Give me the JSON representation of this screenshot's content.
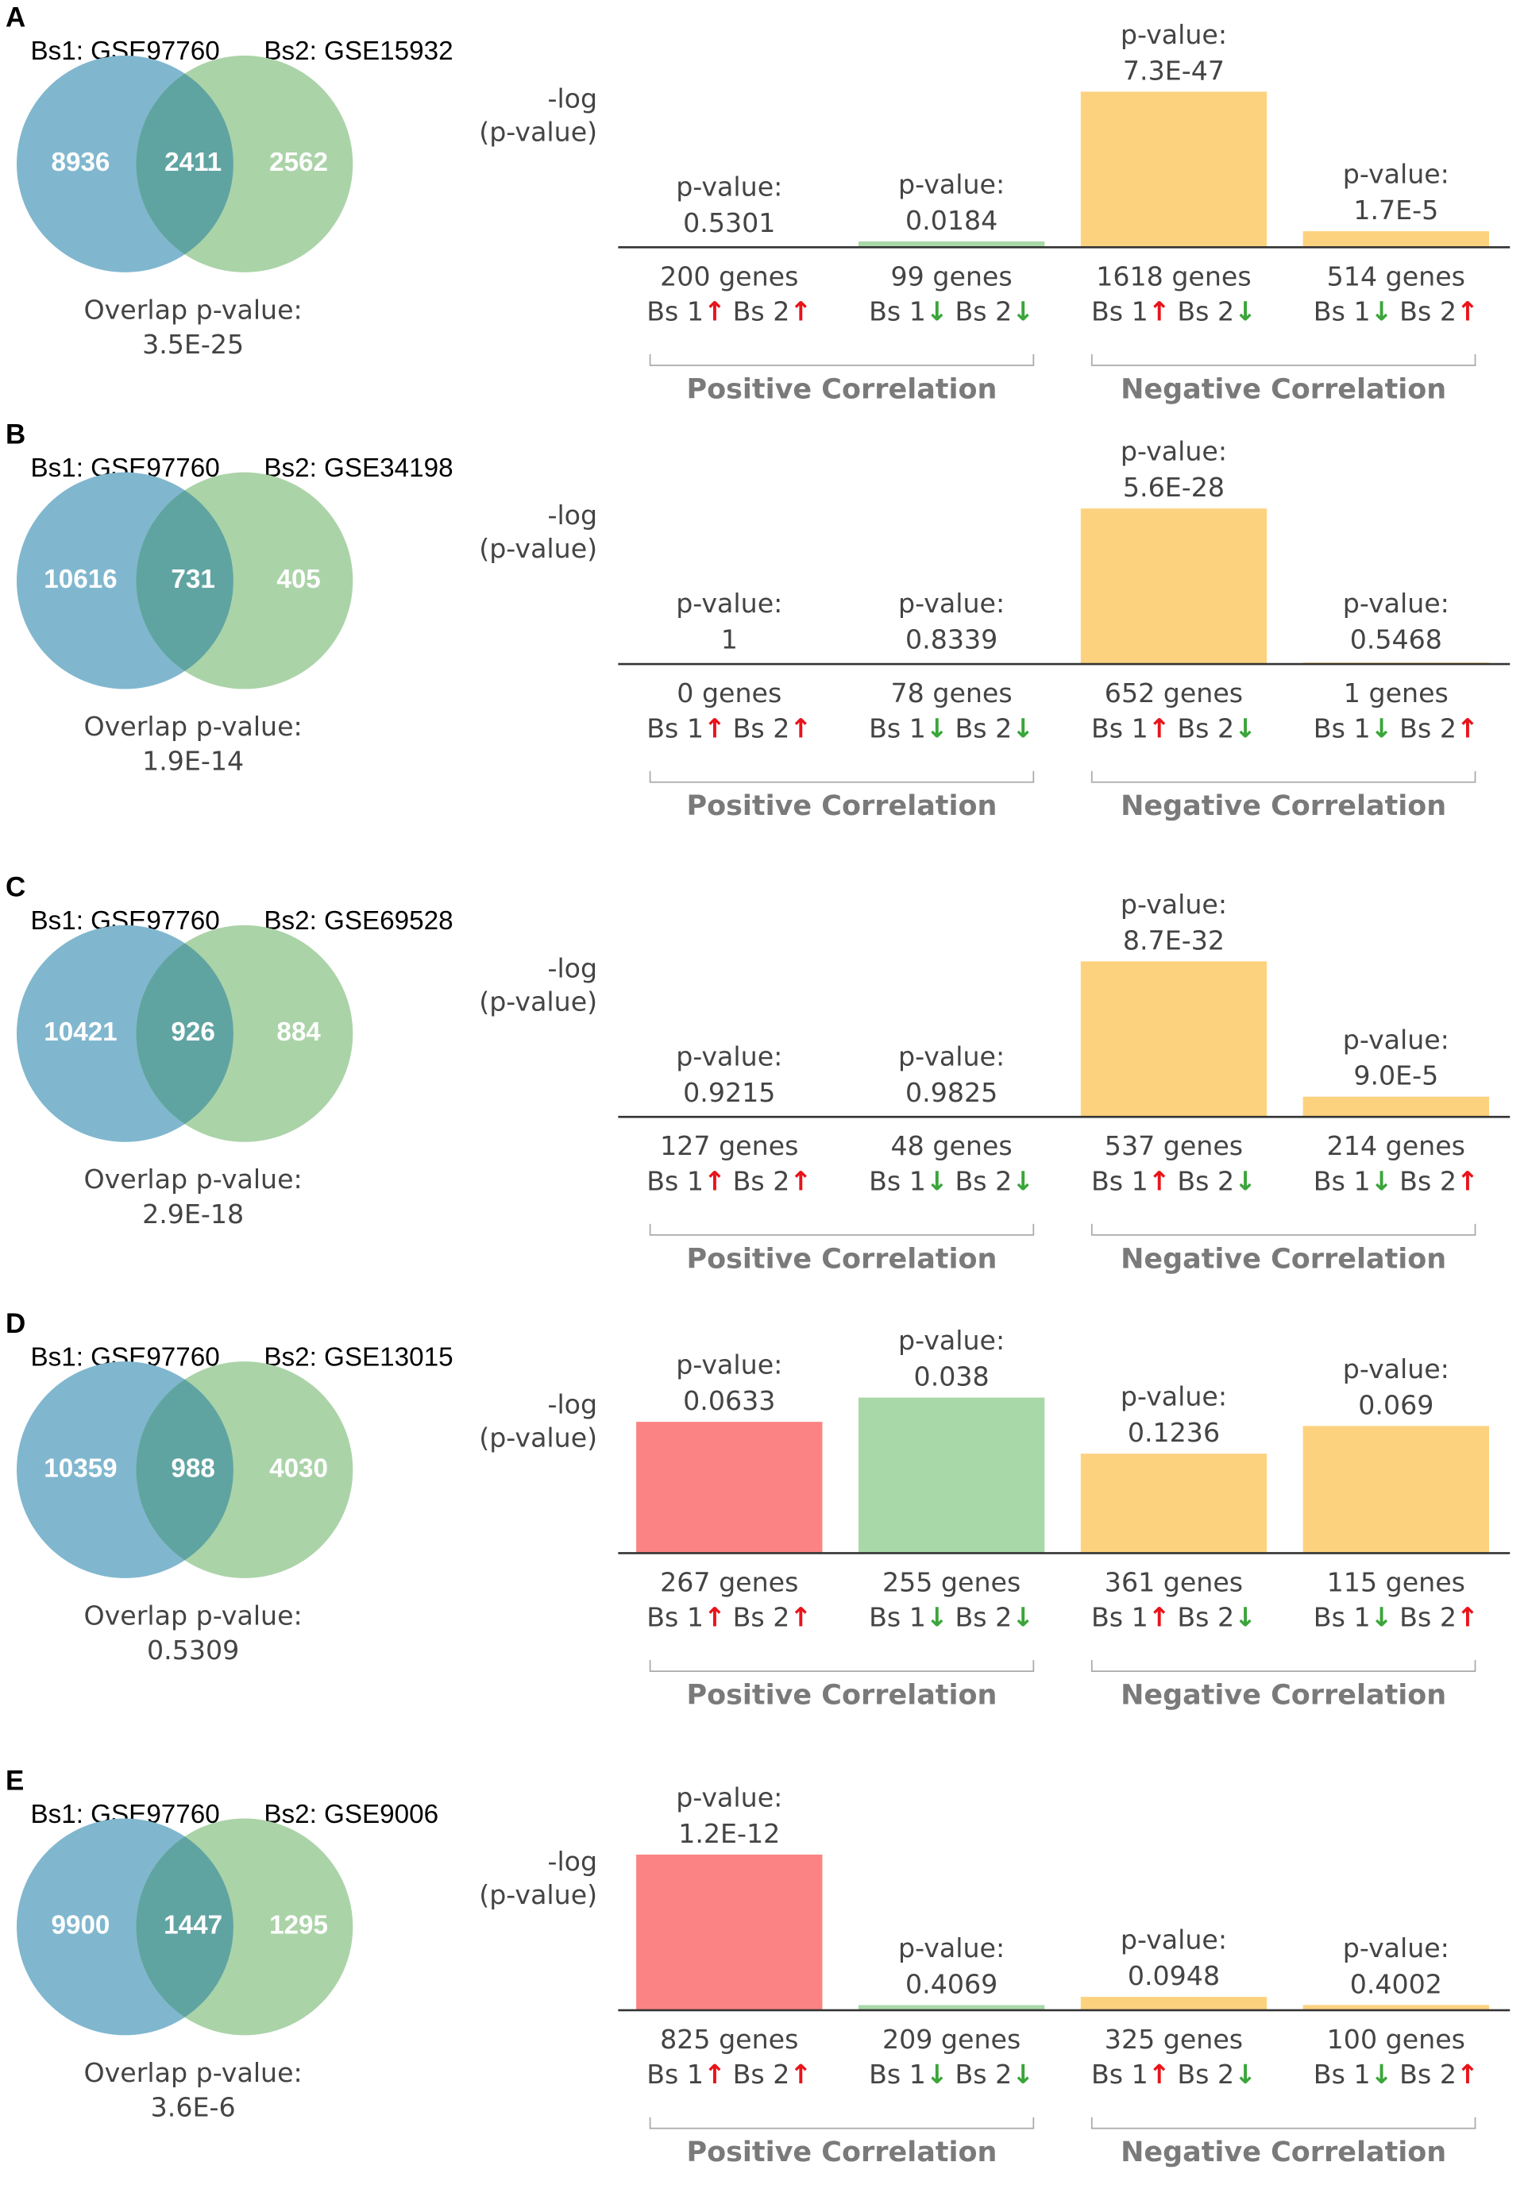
{
  "chart_data": [
    {
      "type": "bar",
      "panel": "A",
      "bs1": "Bs1: GSE97760",
      "bs2": "Bs2: GSE15932",
      "venn": [
        8936,
        2411,
        2562
      ],
      "overlap_title": "Overlap p-value:",
      "overlap_value": 3.5e-25,
      "overlap_label": "3.5E-25",
      "axis_label": [
        "-log",
        "(p-value)"
      ],
      "bar_title": "p-value:",
      "values": [
        0.5301,
        0.0184,
        7.3e-47,
        1.7e-05
      ],
      "value_labels": [
        "0.5301",
        "0.0184",
        "7.3E-47",
        "1.7E-5"
      ],
      "genes": [
        "200 genes",
        "99 genes",
        "1618 genes",
        "514 genes"
      ],
      "directions": [
        [
          "Bs 1",
          "↑",
          "Bs 2",
          "↑"
        ],
        [
          "Bs 1",
          "↓",
          "Bs 2",
          "↓"
        ],
        [
          "Bs 1",
          "↑",
          "Bs 2",
          "↓"
        ],
        [
          "Bs 1",
          "↓",
          "Bs 2",
          "↑"
        ]
      ],
      "groups": [
        "Positive Correlation",
        "Negative Correlation"
      ]
    },
    {
      "type": "bar",
      "panel": "B",
      "bs1": "Bs1: GSE97760",
      "bs2": "Bs2: GSE34198",
      "venn": [
        10616,
        731,
        405
      ],
      "overlap_title": "Overlap p-value:",
      "overlap_value": 1.9e-14,
      "overlap_label": "1.9E-14",
      "axis_label": [
        "-log",
        "(p-value)"
      ],
      "bar_title": "p-value:",
      "values": [
        1,
        0.8339,
        5.6e-28,
        0.5468
      ],
      "value_labels": [
        "1",
        "0.8339",
        "5.6E-28",
        "0.5468"
      ],
      "genes": [
        "0 genes",
        "78 genes",
        "652 genes",
        "1 genes"
      ],
      "directions": [
        [
          "Bs 1",
          "↑",
          "Bs 2",
          "↑"
        ],
        [
          "Bs 1",
          "↓",
          "Bs 2",
          "↓"
        ],
        [
          "Bs 1",
          "↑",
          "Bs 2",
          "↓"
        ],
        [
          "Bs 1",
          "↓",
          "Bs 2",
          "↑"
        ]
      ],
      "groups": [
        "Positive Correlation",
        "Negative Correlation"
      ]
    },
    {
      "type": "bar",
      "panel": "C",
      "bs1": "Bs1: GSE97760",
      "bs2": "Bs2: GSE69528",
      "venn": [
        10421,
        926,
        884
      ],
      "overlap_title": "Overlap p-value:",
      "overlap_value": 2.9e-18,
      "overlap_label": "2.9E-18",
      "axis_label": [
        "-log",
        "(p-value)"
      ],
      "bar_title": "p-value:",
      "values": [
        0.9215,
        0.9825,
        8.7e-32,
        9e-05
      ],
      "value_labels": [
        "0.9215",
        "0.9825",
        "8.7E-32",
        "9.0E-5"
      ],
      "genes": [
        "127 genes",
        "48 genes",
        "537 genes",
        "214 genes"
      ],
      "directions": [
        [
          "Bs 1",
          "↑",
          "Bs 2",
          "↑"
        ],
        [
          "Bs 1",
          "↓",
          "Bs 2",
          "↓"
        ],
        [
          "Bs 1",
          "↑",
          "Bs 2",
          "↓"
        ],
        [
          "Bs 1",
          "↓",
          "Bs 2",
          "↑"
        ]
      ],
      "groups": [
        "Positive Correlation",
        "Negative Correlation"
      ]
    },
    {
      "type": "bar",
      "panel": "D",
      "bs1": "Bs1: GSE97760",
      "bs2": "Bs2: GSE13015",
      "venn": [
        10359,
        988,
        4030
      ],
      "overlap_title": "Overlap p-value:",
      "overlap_value": 0.5309,
      "overlap_label": "0.5309",
      "axis_label": [
        "-log",
        "(p-value)"
      ],
      "bar_title": "p-value:",
      "values": [
        0.0633,
        0.038,
        0.1236,
        0.069
      ],
      "value_labels": [
        "0.0633",
        "0.038",
        "0.1236",
        "0.069"
      ],
      "genes": [
        "267 genes",
        "255 genes",
        "361 genes",
        "115 genes"
      ],
      "directions": [
        [
          "Bs 1",
          "↑",
          "Bs 2",
          "↑"
        ],
        [
          "Bs 1",
          "↓",
          "Bs 2",
          "↓"
        ],
        [
          "Bs 1",
          "↑",
          "Bs 2",
          "↓"
        ],
        [
          "Bs 1",
          "↓",
          "Bs 2",
          "↑"
        ]
      ],
      "groups": [
        "Positive Correlation",
        "Negative Correlation"
      ]
    },
    {
      "type": "bar",
      "panel": "E",
      "bs1": "Bs1: GSE97760",
      "bs2": "Bs2: GSE9006",
      "venn": [
        9900,
        1447,
        1295
      ],
      "overlap_title": "Overlap p-value:",
      "overlap_value": 3.6e-06,
      "overlap_label": "3.6E-6",
      "axis_label": [
        "-log",
        "(p-value)"
      ],
      "bar_title": "p-value:",
      "values": [
        1.2e-12,
        0.4069,
        0.0948,
        0.4002
      ],
      "value_labels": [
        "1.2E-12",
        "0.4069",
        "0.0948",
        "0.4002"
      ],
      "genes": [
        "825 genes",
        "209 genes",
        "325 genes",
        "100 genes"
      ],
      "directions": [
        [
          "Bs 1",
          "↑",
          "Bs 2",
          "↑"
        ],
        [
          "Bs 1",
          "↓",
          "Bs 2",
          "↓"
        ],
        [
          "Bs 1",
          "↑",
          "Bs 2",
          "↓"
        ],
        [
          "Bs 1",
          "↓",
          "Bs 2",
          "↑"
        ]
      ],
      "groups": [
        "Positive Correlation",
        "Negative Correlation"
      ]
    }
  ],
  "bar_colors": [
    "#fc8383",
    "#a8d8a8",
    "#fdd27f",
    "#fdd27f"
  ],
  "venn_colors": [
    "#80b7cf",
    "#abd3a8",
    "#60a4a2"
  ],
  "arrow_colors": {
    "↑": "#e8141a",
    "↓": "#3aa53a"
  }
}
